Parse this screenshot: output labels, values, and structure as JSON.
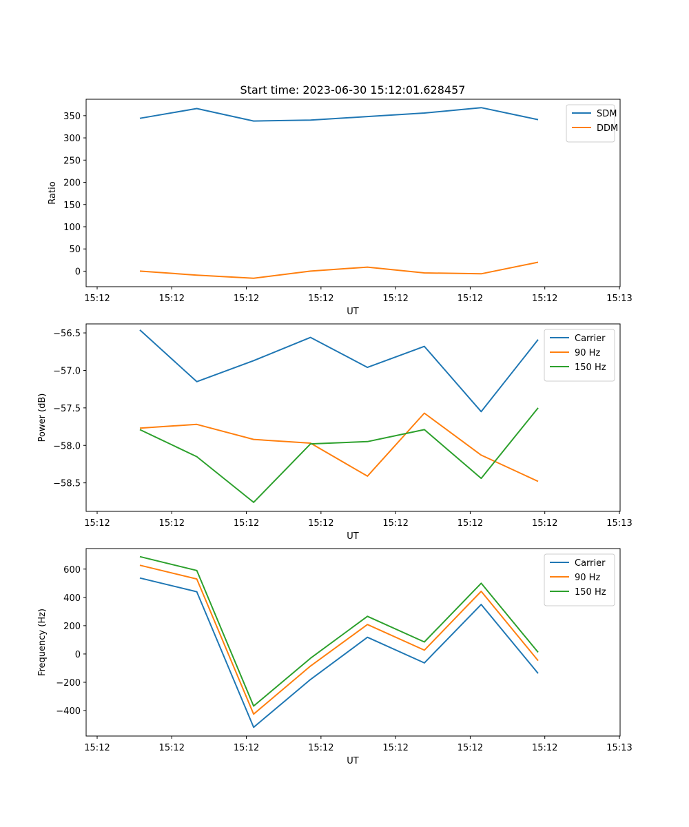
{
  "figure": {
    "title": "Start time: 2023-06-30 15:12:01.628457"
  },
  "chart_data": [
    {
      "type": "line",
      "title": "Start time: 2023-06-30 15:12:01.628457",
      "xlabel": "UT",
      "ylabel": "Ratio",
      "x_ticks": [
        "15:12",
        "15:12",
        "15:12",
        "15:12",
        "15:12",
        "15:12",
        "15:12",
        "15:13"
      ],
      "y_ticks": [
        0,
        50,
        100,
        150,
        200,
        250,
        300,
        350
      ],
      "ylim": [
        -35,
        387
      ],
      "legend": "top-right",
      "grid": false,
      "series": [
        {
          "name": "SDM",
          "color": "#1f77b4",
          "values": [
            344,
            366,
            338,
            340,
            348,
            356,
            368,
            341
          ]
        },
        {
          "name": "DDM",
          "color": "#ff7f0e",
          "values": [
            0,
            -9,
            -16,
            0,
            9,
            -4,
            -6,
            20
          ]
        }
      ]
    },
    {
      "type": "line",
      "xlabel": "UT",
      "ylabel": "Power (dB)",
      "x_ticks": [
        "15:12",
        "15:12",
        "15:12",
        "15:12",
        "15:12",
        "15:12",
        "15:12",
        "15:13"
      ],
      "y_ticks": [
        -56.5,
        -57.0,
        -57.5,
        -58.0,
        -58.5
      ],
      "y_tick_labels": [
        "−56.5",
        "−57.0",
        "−57.5",
        "−58.0",
        "−58.5"
      ],
      "ylim": [
        -58.88,
        -56.38
      ],
      "legend": "top-right",
      "grid": false,
      "series": [
        {
          "name": "Carrier",
          "color": "#1f77b4",
          "values": [
            -56.46,
            -57.15,
            -56.87,
            -56.56,
            -56.96,
            -56.68,
            -57.55,
            -56.59
          ]
        },
        {
          "name": "90 Hz",
          "color": "#ff7f0e",
          "values": [
            -57.77,
            -57.72,
            -57.92,
            -57.97,
            -58.41,
            -57.57,
            -58.13,
            -58.48
          ]
        },
        {
          "name": "150 Hz",
          "color": "#2ca02c",
          "values": [
            -57.79,
            -58.15,
            -58.76,
            -57.98,
            -57.95,
            -57.79,
            -58.44,
            -57.5
          ]
        }
      ]
    },
    {
      "type": "line",
      "xlabel": "UT",
      "ylabel": "Frequency (Hz)",
      "x_ticks": [
        "15:12",
        "15:12",
        "15:12",
        "15:12",
        "15:12",
        "15:12",
        "15:12",
        "15:13"
      ],
      "y_ticks": [
        -400,
        -200,
        0,
        200,
        400,
        600
      ],
      "y_tick_labels": [
        "−400",
        "−200",
        "0",
        "200",
        "400",
        "600"
      ],
      "ylim": [
        -580,
        745
      ],
      "legend": "top-right",
      "grid": false,
      "series": [
        {
          "name": "Carrier",
          "color": "#1f77b4",
          "values": [
            537,
            440,
            -518,
            -180,
            118,
            -63,
            350,
            -137
          ]
        },
        {
          "name": "90 Hz",
          "color": "#ff7f0e",
          "values": [
            627,
            530,
            -425,
            -85,
            208,
            27,
            443,
            -47
          ]
        },
        {
          "name": "150 Hz",
          "color": "#2ca02c",
          "values": [
            688,
            590,
            -368,
            -30,
            266,
            85,
            500,
            12
          ]
        }
      ]
    }
  ]
}
